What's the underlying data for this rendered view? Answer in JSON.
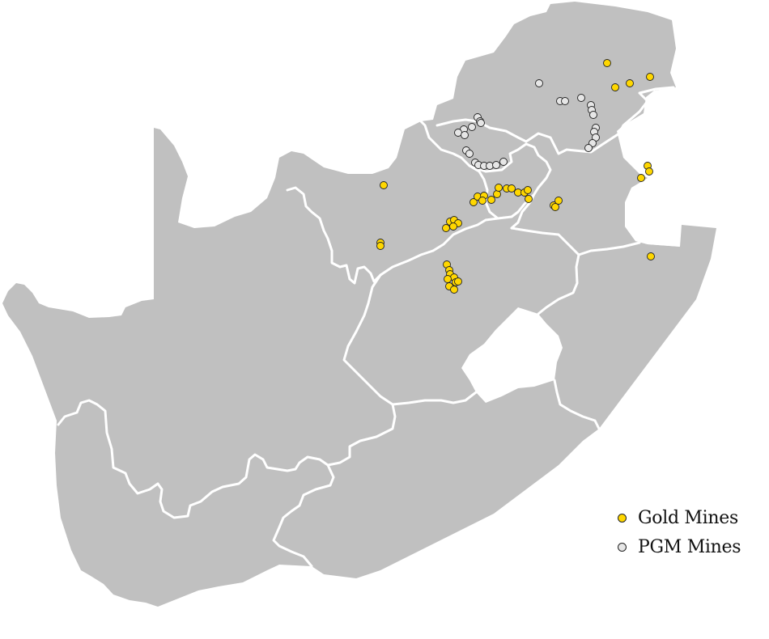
{
  "map": {
    "colors": {
      "land": "#c0c0c0",
      "borders": "#ffffff",
      "gold": "#ffd700",
      "pgm": "#e6e6e6"
    }
  },
  "legend": {
    "items": [
      {
        "label": "Gold Mines",
        "color": "#ffd700"
      },
      {
        "label": "PGM Mines",
        "color": "#e6e6e6"
      }
    ]
  }
}
